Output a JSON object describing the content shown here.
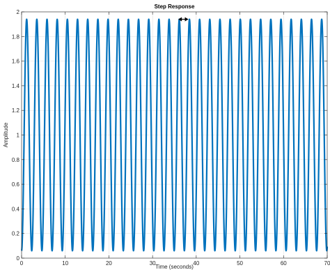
{
  "chart_data": {
    "type": "line",
    "title": "Step Response",
    "xlabel": "Time (seconds)",
    "ylabel": "Amplitude",
    "xlim": [
      0,
      70
    ],
    "ylim": [
      0,
      2
    ],
    "x_ticks": [
      0,
      10,
      20,
      30,
      40,
      50,
      60,
      70
    ],
    "y_ticks": [
      0,
      0.2,
      0.4,
      0.6,
      0.8,
      1,
      1.2,
      1.4,
      1.6,
      1.8,
      2
    ],
    "x_tick_labels": [
      "0",
      "10",
      "20",
      "30",
      "40",
      "50",
      "60",
      "70"
    ],
    "y_tick_labels": [
      "0",
      "0.2",
      "0.4",
      "0.6",
      "0.8",
      "1",
      "1.2",
      "1.4",
      "1.6",
      "1.8",
      "2"
    ],
    "grid": true,
    "series": [
      {
        "color": "#0072BD",
        "shape": "1 - 0.94*cos(2*pi*t/2.33)",
        "peak": 1.94,
        "trough": 0.06,
        "period": 2.33,
        "t_start": 0,
        "t_end": 70
      }
    ],
    "annotations": [
      {
        "type": "double-arrow",
        "x_start": 35.9,
        "x_end": 38.2,
        "y": 1.94,
        "color": "#000000"
      }
    ]
  }
}
